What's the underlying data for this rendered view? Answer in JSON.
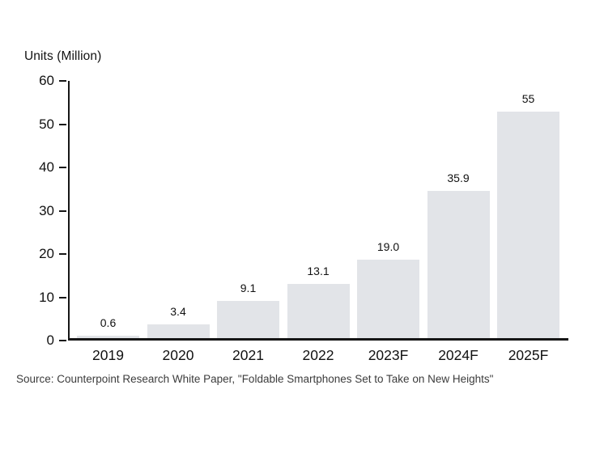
{
  "chart_data": {
    "type": "bar",
    "title": "",
    "ylabel": "Units (Million)",
    "xlabel": "",
    "categories": [
      "2019",
      "2020",
      "2021",
      "2022",
      "2023F",
      "2024F",
      "2025F"
    ],
    "values": [
      0.6,
      3.4,
      9.1,
      13.1,
      19.0,
      35.9,
      55
    ],
    "value_labels": [
      "0.6",
      "3.4",
      "9.1",
      "13.1",
      "19.0",
      "35.9",
      "55"
    ],
    "ylim": [
      0,
      60
    ],
    "yticks": [
      0,
      10,
      20,
      30,
      40,
      50,
      60
    ],
    "grid": false,
    "legend": null,
    "bar_color": "#e2e4e8",
    "axis_color": "#161616",
    "text_color": "#111111",
    "source_color": "#3c3c3c",
    "source": "Source: Counterpoint Research White Paper, \"Foldable Smartphones Set to Take on New Heights\""
  }
}
